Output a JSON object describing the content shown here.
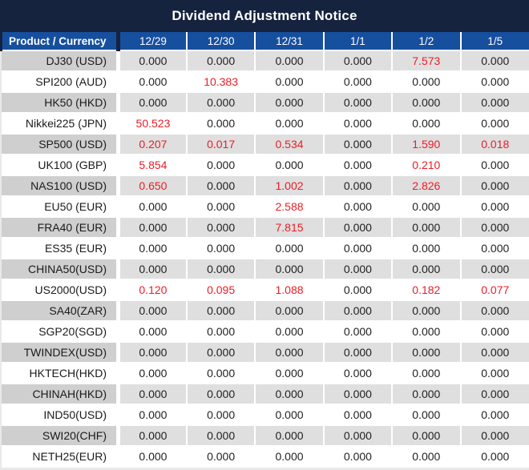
{
  "title": "Dividend Adjustment Notice",
  "colors": {
    "title_bar_bg": "#16233f",
    "header_bg": "#164f9e",
    "gray_row_product_bg": "#cfcfcf",
    "gray_row_value_bg": "#dfdfdf",
    "negative_highlight_red": "#ed1c24",
    "text_black": "#1f1f1f"
  },
  "columns": [
    "Product / Currency",
    "12/29",
    "12/30",
    "12/31",
    "1/1",
    "1/2",
    "1/5"
  ],
  "rows": [
    {
      "product": "DJ30 (USD)",
      "values": [
        "0.000",
        "0.000",
        "0.000",
        "0.000",
        "7.573",
        "0.000"
      ],
      "red": [
        4
      ]
    },
    {
      "product": "SPI200 (AUD)",
      "values": [
        "0.000",
        "10.383",
        "0.000",
        "0.000",
        "0.000",
        "0.000"
      ],
      "red": [
        1
      ]
    },
    {
      "product": "HK50 (HKD)",
      "values": [
        "0.000",
        "0.000",
        "0.000",
        "0.000",
        "0.000",
        "0.000"
      ],
      "red": []
    },
    {
      "product": "Nikkei225 (JPN)",
      "values": [
        "50.523",
        "0.000",
        "0.000",
        "0.000",
        "0.000",
        "0.000"
      ],
      "red": [
        0
      ]
    },
    {
      "product": "SP500 (USD)",
      "values": [
        "0.207",
        "0.017",
        "0.534",
        "0.000",
        "1.590",
        "0.018"
      ],
      "red": [
        0,
        1,
        2,
        4,
        5
      ]
    },
    {
      "product": "UK100 (GBP)",
      "values": [
        "5.854",
        "0.000",
        "0.000",
        "0.000",
        "0.210",
        "0.000"
      ],
      "red": [
        0,
        4
      ]
    },
    {
      "product": "NAS100 (USD)",
      "values": [
        "0.650",
        "0.000",
        "1.002",
        "0.000",
        "2.826",
        "0.000"
      ],
      "red": [
        0,
        2,
        4
      ]
    },
    {
      "product": "EU50 (EUR)",
      "values": [
        "0.000",
        "0.000",
        "2.588",
        "0.000",
        "0.000",
        "0.000"
      ],
      "red": [
        2
      ]
    },
    {
      "product": "FRA40 (EUR)",
      "values": [
        "0.000",
        "0.000",
        "7.815",
        "0.000",
        "0.000",
        "0.000"
      ],
      "red": [
        2
      ]
    },
    {
      "product": "ES35 (EUR)",
      "values": [
        "0.000",
        "0.000",
        "0.000",
        "0.000",
        "0.000",
        "0.000"
      ],
      "red": []
    },
    {
      "product": "CHINA50(USD)",
      "values": [
        "0.000",
        "0.000",
        "0.000",
        "0.000",
        "0.000",
        "0.000"
      ],
      "red": []
    },
    {
      "product": "US2000(USD)",
      "values": [
        "0.120",
        "0.095",
        "1.088",
        "0.000",
        "0.182",
        "0.077"
      ],
      "red": [
        0,
        1,
        2,
        4,
        5
      ]
    },
    {
      "product": "SA40(ZAR)",
      "values": [
        "0.000",
        "0.000",
        "0.000",
        "0.000",
        "0.000",
        "0.000"
      ],
      "red": []
    },
    {
      "product": "SGP20(SGD)",
      "values": [
        "0.000",
        "0.000",
        "0.000",
        "0.000",
        "0.000",
        "0.000"
      ],
      "red": []
    },
    {
      "product": "TWINDEX(USD)",
      "values": [
        "0.000",
        "0.000",
        "0.000",
        "0.000",
        "0.000",
        "0.000"
      ],
      "red": []
    },
    {
      "product": "HKTECH(HKD)",
      "values": [
        "0.000",
        "0.000",
        "0.000",
        "0.000",
        "0.000",
        "0.000"
      ],
      "red": []
    },
    {
      "product": "CHINAH(HKD)",
      "values": [
        "0.000",
        "0.000",
        "0.000",
        "0.000",
        "0.000",
        "0.000"
      ],
      "red": []
    },
    {
      "product": "IND50(USD)",
      "values": [
        "0.000",
        "0.000",
        "0.000",
        "0.000",
        "0.000",
        "0.000"
      ],
      "red": []
    },
    {
      "product": "SWI20(CHF)",
      "values": [
        "0.000",
        "0.000",
        "0.000",
        "0.000",
        "0.000",
        "0.000"
      ],
      "red": []
    },
    {
      "product": "NETH25(EUR)",
      "values": [
        "0.000",
        "0.000",
        "0.000",
        "0.000",
        "0.000",
        "0.000"
      ],
      "red": []
    }
  ]
}
